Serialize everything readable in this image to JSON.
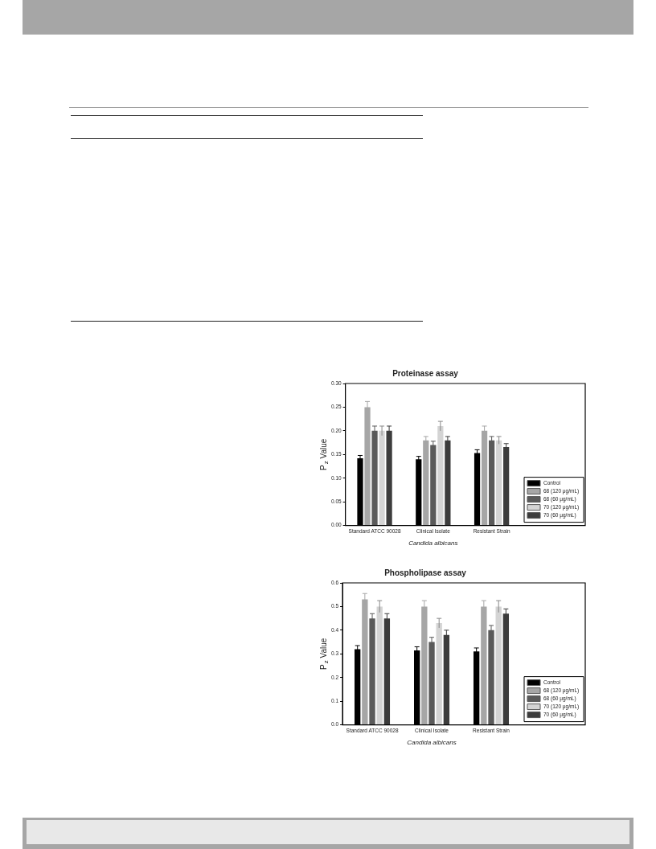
{
  "chart_data": [
    {
      "type": "bar",
      "title": "Proteinase assay",
      "xlabel": "Candida albicans",
      "ylabel": "P$_{z}$ Value",
      "categories": [
        "Standard ATCC 90028",
        "Clinical Isolate",
        "Resistant Strain"
      ],
      "series": [
        {
          "name": "Control",
          "color": "#000000",
          "values": [
            0.142,
            0.14,
            0.153
          ],
          "errors": [
            0.006,
            0.006,
            0.007
          ]
        },
        {
          "name": "68 (120 μg/mL)",
          "color": "#a6a6a6",
          "values": [
            0.25,
            0.18,
            0.2
          ],
          "errors": [
            0.012,
            0.008,
            0.01
          ]
        },
        {
          "name": "68 (60 μg/mL)",
          "color": "#5a5a5a",
          "values": [
            0.2,
            0.17,
            0.18
          ],
          "errors": [
            0.01,
            0.008,
            0.008
          ]
        },
        {
          "name": "70 (120 μg/mL)",
          "color": "#d4d4d4",
          "values": [
            0.2,
            0.21,
            0.18
          ],
          "errors": [
            0.01,
            0.01,
            0.008
          ]
        },
        {
          "name": "70 (60 μg/mL)",
          "color": "#3c3c3c",
          "values": [
            0.2,
            0.18,
            0.166
          ],
          "errors": [
            0.01,
            0.008,
            0.007
          ]
        }
      ],
      "ylim": [
        0,
        0.3
      ],
      "yticks": [
        {
          "value": 0,
          "label": "0.00"
        },
        {
          "value": 0.05,
          "label": "0.05"
        },
        {
          "value": 0.1,
          "label": "0.10"
        },
        {
          "value": 0.15,
          "label": "0.15"
        },
        {
          "value": 0.2,
          "label": "0.20"
        },
        {
          "value": 0.25,
          "label": "0.25"
        },
        {
          "value": 0.3,
          "label": "0.30"
        }
      ],
      "grid": false,
      "legend": "bottom right"
    },
    {
      "type": "bar",
      "title": "Phospholipase assay",
      "xlabel": "Candida albicans",
      "ylabel": "P$_{z}$ Value",
      "categories": [
        "Standard ATCC 90028",
        "Clinical Isolate",
        "Resistant Strain"
      ],
      "series": [
        {
          "name": "Control",
          "color": "#000000",
          "values": [
            0.32,
            0.315,
            0.31
          ],
          "errors": [
            0.015,
            0.015,
            0.015
          ]
        },
        {
          "name": "68 (120 μg/mL)",
          "color": "#a6a6a6",
          "values": [
            0.53,
            0.5,
            0.5
          ],
          "errors": [
            0.025,
            0.025,
            0.025
          ]
        },
        {
          "name": "68 (60 μg/mL)",
          "color": "#5a5a5a",
          "values": [
            0.45,
            0.35,
            0.4
          ],
          "errors": [
            0.02,
            0.02,
            0.02
          ]
        },
        {
          "name": "70 (120 μg/mL)",
          "color": "#d4d4d4",
          "values": [
            0.5,
            0.43,
            0.5
          ],
          "errors": [
            0.025,
            0.02,
            0.025
          ]
        },
        {
          "name": "70 (60 μg/mL)",
          "color": "#3c3c3c",
          "values": [
            0.45,
            0.38,
            0.47
          ],
          "errors": [
            0.02,
            0.02,
            0.02
          ]
        }
      ],
      "ylim": [
        0,
        0.6
      ],
      "yticks": [
        {
          "value": 0,
          "label": "0.0"
        },
        {
          "value": 0.1,
          "label": "0.1"
        },
        {
          "value": 0.2,
          "label": "0.2"
        },
        {
          "value": 0.3,
          "label": "0.3"
        },
        {
          "value": 0.4,
          "label": "0.4"
        },
        {
          "value": 0.5,
          "label": "0.5"
        },
        {
          "value": 0.6,
          "label": "0.6"
        }
      ],
      "grid": false,
      "legend": "bottom right"
    }
  ]
}
